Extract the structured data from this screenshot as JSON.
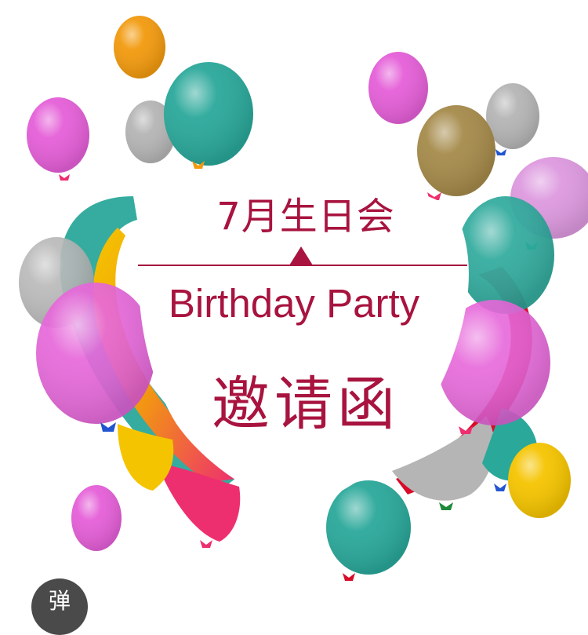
{
  "invitation": {
    "title_cn": "7月生日会",
    "title_en": "Birthday Party",
    "title_invite": "邀请函"
  },
  "floating_button": {
    "label": "弹"
  },
  "colors": {
    "accent": "#a8143f",
    "teal": "#2aa89a",
    "magenta": "#e55fd8",
    "gray": "#b5b5b5",
    "orange": "#f29a0e",
    "yellow": "#f5c400",
    "red": "#d80b2a",
    "pink": "#ee2f6f",
    "brown": "#a58a4a",
    "lavender": "#d98edc"
  },
  "balloons": [
    {
      "name": "balloon-orange-top",
      "color": "#f29a0e",
      "bow": "none"
    },
    {
      "name": "balloon-teal-top",
      "color": "#2aa89a",
      "bow": "orange"
    },
    {
      "name": "balloon-gray-top-left",
      "color": "#b5b5b5",
      "bow": "green"
    },
    {
      "name": "balloon-magenta-left",
      "color": "#e55fd8",
      "bow": "pink"
    },
    {
      "name": "balloon-magenta-top-right",
      "color": "#e55fd8",
      "bow": "none"
    },
    {
      "name": "balloon-gray-top-right",
      "color": "#b5b5b5",
      "bow": "blue"
    },
    {
      "name": "balloon-brown-right",
      "color": "#a58a4a",
      "bow": "pink"
    },
    {
      "name": "balloon-lavender-right",
      "color": "#d98edc",
      "bow": "none"
    },
    {
      "name": "balloon-magenta-large-left",
      "color": "#e55fd8",
      "bow": "blue"
    },
    {
      "name": "balloon-teal-large-right",
      "color": "#2aa89a",
      "bow": "green"
    },
    {
      "name": "balloon-teal-bottom",
      "color": "#2aa89a",
      "bow": "red"
    },
    {
      "name": "balloon-magenta-bottom-left",
      "color": "#e55fd8",
      "bow": "none"
    },
    {
      "name": "balloon-yellow-bottom-right",
      "color": "#f5c400",
      "bow": "none"
    }
  ]
}
